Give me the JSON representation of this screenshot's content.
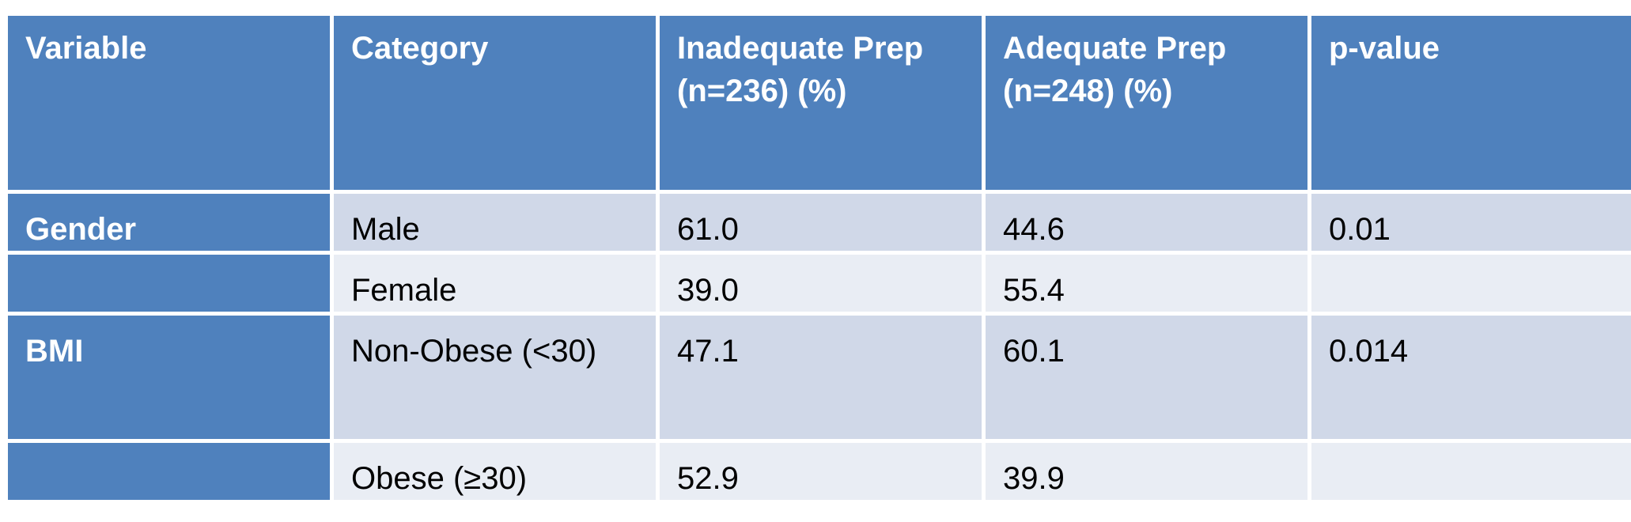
{
  "table": {
    "headers": [
      {
        "line1": "Variable",
        "line2": ""
      },
      {
        "line1": "Category",
        "line2": ""
      },
      {
        "line1": "Inadequate Prep",
        "line2": "(n=236) (%)"
      },
      {
        "line1": "Adequate Prep",
        "line2": "(n=248) (%)"
      },
      {
        "line1": "p-value",
        "line2": ""
      }
    ],
    "rows": [
      {
        "variable": "Gender",
        "category": "Male",
        "inadequate": "61.0",
        "adequate": "44.6",
        "p_value": "0.01"
      },
      {
        "variable": "",
        "category": "Female",
        "inadequate": "39.0",
        "adequate": "55.4",
        "p_value": ""
      },
      {
        "variable": "BMI",
        "category": "Non-Obese (<30)",
        "inadequate": "47.1",
        "adequate": "60.1",
        "p_value": "0.014"
      },
      {
        "variable": "",
        "category": "Obese (≥30)",
        "inadequate": "52.9",
        "adequate": "39.9",
        "p_value": ""
      }
    ],
    "colors": {
      "header_bg": "#4f81bd",
      "header_text": "#ffffff",
      "row_odd": "#d0d8e8",
      "row_even": "#e9edf4"
    }
  }
}
